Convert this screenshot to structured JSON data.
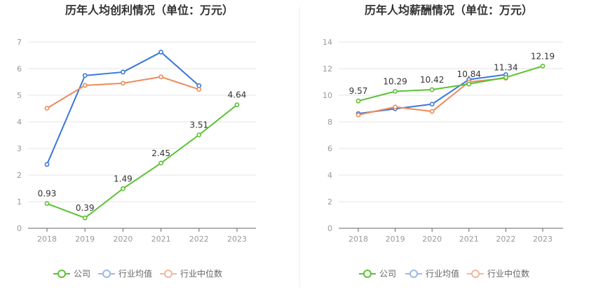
{
  "chart_data": [
    {
      "type": "line",
      "title": "历年人均创利情况（单位：万元）",
      "categories": [
        "2018",
        "2019",
        "2020",
        "2021",
        "2022",
        "2023"
      ],
      "ylim": [
        0,
        7
      ],
      "yticks": [
        0,
        1,
        2,
        3,
        4,
        5,
        6,
        7
      ],
      "grid": true,
      "legend": "bottom",
      "series": [
        {
          "name": "公司",
          "color": "#5bc234",
          "values": [
            0.93,
            0.39,
            1.49,
            2.45,
            3.51,
            4.64
          ],
          "labels": [
            "0.93",
            "0.39",
            "1.49",
            "2.45",
            "3.51",
            "4.64"
          ]
        },
        {
          "name": "行业均值",
          "color": "#3c78d8",
          "values": [
            2.4,
            5.74,
            5.87,
            6.62,
            5.36,
            null
          ]
        },
        {
          "name": "行业中位数",
          "color": "#ee8a5c",
          "values": [
            4.51,
            5.37,
            5.45,
            5.69,
            5.22,
            null
          ]
        }
      ]
    },
    {
      "type": "line",
      "title": "历年人均薪酬情况（单位：万元）",
      "categories": [
        "2018",
        "2019",
        "2020",
        "2021",
        "2022",
        "2023"
      ],
      "ylim": [
        0,
        14
      ],
      "yticks": [
        0,
        2,
        4,
        6,
        8,
        10,
        12,
        14
      ],
      "grid": true,
      "legend": "bottom",
      "series": [
        {
          "name": "公司",
          "color": "#5bc234",
          "values": [
            9.57,
            10.29,
            10.42,
            10.84,
            11.34,
            12.19
          ],
          "labels": [
            "9.57",
            "10.29",
            "10.42",
            "10.84",
            "11.34",
            "12.19"
          ]
        },
        {
          "name": "行业均值",
          "color": "#3c78d8",
          "values": [
            8.62,
            8.98,
            9.33,
            11.18,
            11.55,
            null
          ]
        },
        {
          "name": "行业中位数",
          "color": "#ee8a5c",
          "values": [
            8.52,
            9.12,
            8.78,
            11.0,
            11.28,
            null
          ]
        }
      ]
    }
  ]
}
